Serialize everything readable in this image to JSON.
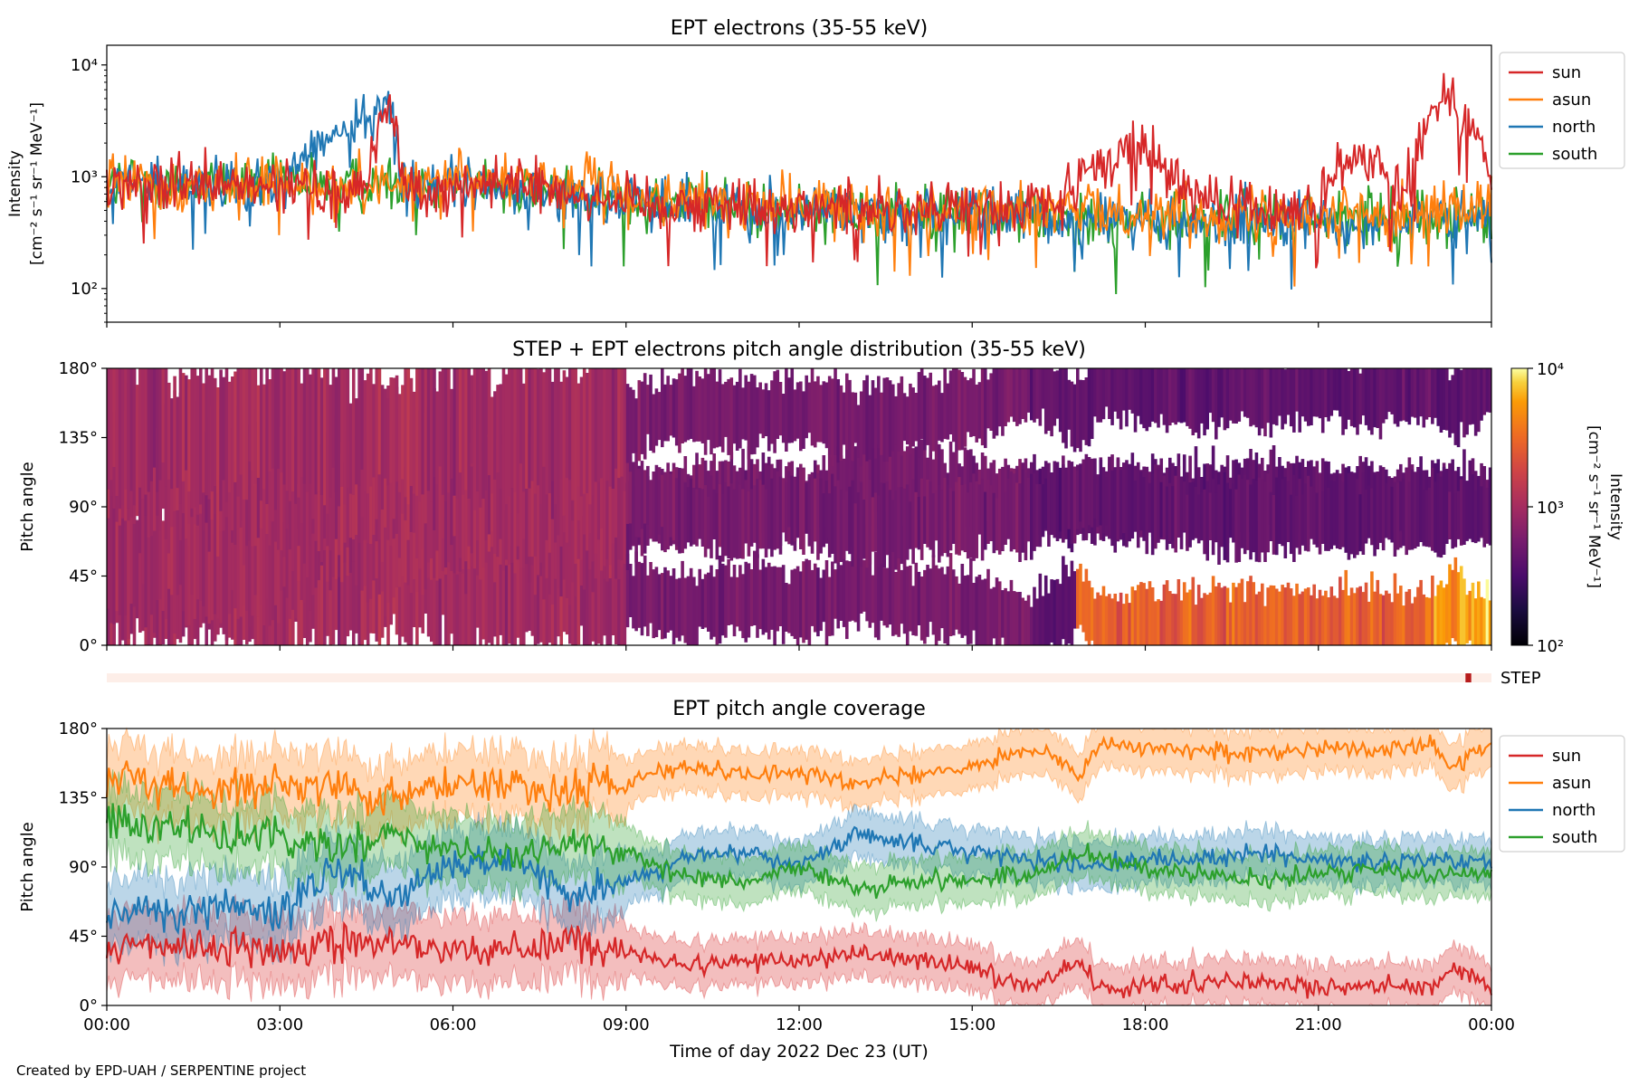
{
  "figure": {
    "footer": "Created by EPD-UAH / SERPENTINE project",
    "xlabel": "Time of day 2022 Dec 23 (UT)",
    "xticks": [
      "00:00",
      "03:00",
      "06:00",
      "09:00",
      "12:00",
      "15:00",
      "18:00",
      "21:00",
      "00:00"
    ]
  },
  "colors": {
    "sun": "#d62728",
    "asun": "#ff7f0e",
    "north": "#1f77b4",
    "south": "#2ca02c"
  },
  "chart_data": [
    {
      "type": "line",
      "title": "EPT electrons (35-55 keV)",
      "ylabel_line1": "Intensity",
      "ylabel_line2": "[cm⁻² s⁻¹ sr⁻¹ MeV⁻¹]",
      "yscale": "log",
      "ylim": [
        50,
        15000
      ],
      "yticks": [
        "10²",
        "10³",
        "10⁴"
      ],
      "xlim_hours": [
        0,
        24
      ],
      "legend": [
        "sun",
        "asun",
        "north",
        "south"
      ],
      "legend_position": "right",
      "series": [
        {
          "name": "sun",
          "x": [
            0,
            1.5,
            3,
            4.5,
            4.9,
            5.1,
            5.4,
            7,
            9,
            12,
            15,
            16.5,
            17.2,
            17.8,
            18.5,
            19,
            20,
            21,
            21.5,
            22,
            22.5,
            22.9,
            23.2,
            23.5,
            24
          ],
          "y": [
            800,
            820,
            780,
            760,
            4500,
            900,
            800,
            900,
            600,
            550,
            500,
            600,
            1200,
            2000,
            1000,
            600,
            500,
            550,
            1300,
            1500,
            700,
            3000,
            6500,
            3500,
            800
          ]
        },
        {
          "name": "asun",
          "x": [
            0,
            3,
            6,
            7.5,
            9,
            12,
            15,
            18,
            21,
            24
          ],
          "y": [
            900,
            850,
            900,
            1000,
            650,
            550,
            520,
            480,
            470,
            500
          ]
        },
        {
          "name": "north",
          "x": [
            0,
            3,
            4.9,
            5.1,
            6,
            9,
            12,
            15,
            18,
            21,
            24
          ],
          "y": [
            850,
            820,
            4000,
            900,
            850,
            600,
            500,
            450,
            400,
            380,
            420
          ]
        },
        {
          "name": "south",
          "x": [
            0,
            3,
            6,
            9,
            12,
            15,
            16.5,
            18,
            21,
            24
          ],
          "y": [
            900,
            850,
            900,
            600,
            500,
            480,
            430,
            420,
            410,
            430
          ]
        }
      ]
    },
    {
      "type": "heatmap",
      "title": "STEP + EPT electrons pitch angle distribution (35-55 keV)",
      "ylabel": "Pitch angle",
      "ylim": [
        0,
        180
      ],
      "yticks": [
        "0°",
        "45°",
        "90°",
        "135°",
        "180°"
      ],
      "colorbar": {
        "label_line1": "Intensity",
        "label_line2": "[cm⁻² s⁻¹ sr⁻¹ MeV⁻¹]",
        "scale": "log",
        "range": [
          100,
          10000
        ],
        "ticks": [
          "10²",
          "10³",
          "10⁴"
        ],
        "colormap": "inferno"
      }
    },
    {
      "type": "bar",
      "label": "STEP",
      "note_hours": [
        23.55,
        23.65
      ],
      "base_color": "#fdeee8",
      "mark_color": "#b71c1c"
    },
    {
      "type": "line",
      "title": "EPT pitch angle coverage",
      "ylabel": "Pitch angle",
      "ylim": [
        0,
        180
      ],
      "yticks": [
        "0°",
        "45°",
        "90°",
        "135°",
        "180°"
      ],
      "legend": [
        "sun",
        "asun",
        "north",
        "south"
      ],
      "legend_position": "right",
      "series": [
        {
          "name": "sun",
          "x": [
            0,
            1,
            2,
            3,
            4,
            5,
            6,
            7,
            8,
            9,
            10,
            11,
            12,
            13,
            14,
            15,
            16,
            16.9,
            17.2,
            18,
            19,
            20,
            21,
            22,
            23,
            23.3,
            24
          ],
          "y": [
            35,
            38,
            40,
            35,
            40,
            42,
            35,
            38,
            40,
            35,
            25,
            30,
            28,
            35,
            30,
            25,
            12,
            30,
            10,
            12,
            15,
            15,
            12,
            15,
            10,
            25,
            10
          ]
        },
        {
          "name": "asun",
          "x": [
            0,
            1,
            2,
            3,
            4,
            5,
            6,
            7,
            8,
            9,
            10,
            11,
            12,
            13,
            14,
            15,
            16,
            16.9,
            17.2,
            18,
            19,
            20,
            21,
            22,
            23,
            23.3,
            24
          ],
          "y": [
            145,
            142,
            140,
            145,
            140,
            138,
            145,
            142,
            140,
            145,
            155,
            150,
            152,
            145,
            150,
            155,
            168,
            150,
            170,
            168,
            165,
            165,
            168,
            165,
            170,
            155,
            170
          ]
        },
        {
          "name": "north",
          "x": [
            0,
            1,
            2,
            3,
            4,
            5,
            6,
            7,
            8,
            9,
            10,
            11,
            12,
            13,
            14,
            15,
            16,
            17,
            18,
            19,
            20,
            21,
            22,
            23,
            24
          ],
          "y": [
            60,
            62,
            65,
            60,
            90,
            70,
            90,
            95,
            75,
            80,
            95,
            100,
            90,
            110,
            105,
            100,
            95,
            90,
            95,
            95,
            100,
            95,
            92,
            95,
            92
          ]
        },
        {
          "name": "south",
          "x": [
            0,
            1,
            2,
            3,
            4,
            5,
            6,
            7,
            8,
            9,
            10,
            11,
            12,
            13,
            14,
            15,
            16,
            17,
            18,
            19,
            20,
            21,
            22,
            23,
            24
          ],
          "y": [
            118,
            115,
            112,
            110,
            100,
            110,
            100,
            95,
            108,
            100,
            85,
            80,
            90,
            75,
            80,
            82,
            85,
            100,
            88,
            85,
            82,
            85,
            88,
            85,
            88
          ]
        }
      ]
    }
  ]
}
